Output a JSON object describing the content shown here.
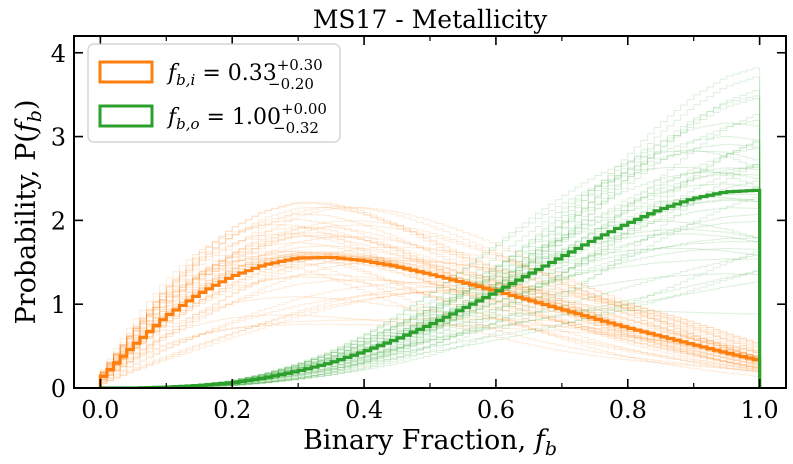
{
  "chart_data": {
    "type": "line",
    "step": true,
    "title": "MS17 - Metallicity",
    "xlabel": "Binary Fraction, ",
    "xlabel_symbol": "f",
    "xlabel_sub": "b",
    "ylabel_prefix": "Probability, P(",
    "ylabel_symbol": "f",
    "ylabel_sub": "b",
    "ylabel_suffix": ")",
    "xlim": [
      -0.04,
      1.04
    ],
    "ylim": [
      0,
      4.2
    ],
    "xticks": [
      0.0,
      0.2,
      0.4,
      0.6,
      0.8,
      1.0
    ],
    "xtick_labels": [
      "0.0",
      "0.2",
      "0.4",
      "0.6",
      "0.8",
      "1.0"
    ],
    "yticks": [
      0,
      1,
      2,
      3,
      4
    ],
    "ytick_labels": [
      "0",
      "1",
      "2",
      "3",
      "4"
    ],
    "n_bins": 100,
    "legend_position": "top-left",
    "series": [
      {
        "name": "f_{b,i}",
        "legend_symbol": "f",
        "legend_sub": "b,i",
        "legend_eq": " = 0.33",
        "legend_sup": "+0.30",
        "legend_low": "−0.20",
        "color": "#ff7f0e",
        "x": [
          0.0,
          0.05,
          0.1,
          0.15,
          0.2,
          0.25,
          0.3,
          0.35,
          0.4,
          0.45,
          0.5,
          0.55,
          0.6,
          0.65,
          0.7,
          0.75,
          0.8,
          0.85,
          0.9,
          0.95,
          1.0
        ],
        "values": [
          0.1,
          0.5,
          0.85,
          1.12,
          1.33,
          1.47,
          1.55,
          1.56,
          1.52,
          1.45,
          1.36,
          1.26,
          1.16,
          1.05,
          0.94,
          0.83,
          0.72,
          0.62,
          0.52,
          0.42,
          0.33
        ]
      },
      {
        "name": "f_{b,o}",
        "legend_symbol": "f",
        "legend_sub": "b,o",
        "legend_eq": " = 1.00",
        "legend_sup": "+0.00",
        "legend_low": "−0.32",
        "color": "#2ca02c",
        "x": [
          0.0,
          0.05,
          0.1,
          0.15,
          0.2,
          0.25,
          0.3,
          0.35,
          0.4,
          0.45,
          0.5,
          0.55,
          0.6,
          0.65,
          0.7,
          0.75,
          0.8,
          0.85,
          0.9,
          0.95,
          1.0
        ],
        "values": [
          0.0,
          0.0,
          0.01,
          0.03,
          0.06,
          0.12,
          0.2,
          0.3,
          0.43,
          0.58,
          0.75,
          0.94,
          1.14,
          1.35,
          1.56,
          1.77,
          1.96,
          2.13,
          2.26,
          2.34,
          2.36
        ]
      }
    ]
  }
}
